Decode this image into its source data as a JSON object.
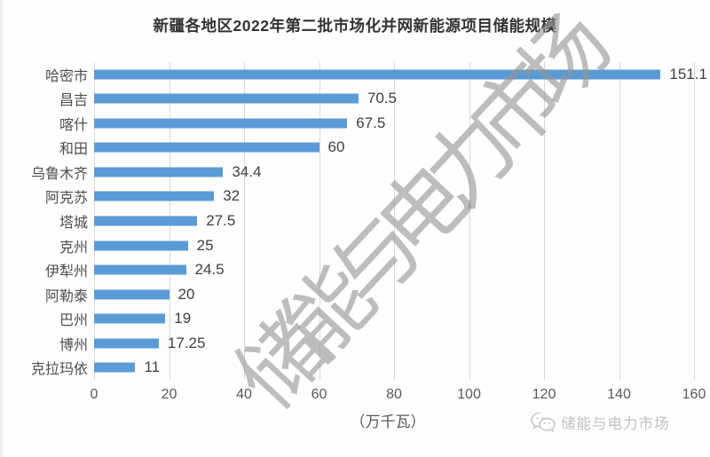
{
  "title": "新疆各地区2022年第二批市场化并网新能源项目储能规模",
  "watermark": "储能与电力市场",
  "footer": {
    "icon": "wechat-icon",
    "brand": "储能与电力市场"
  },
  "axis": {
    "unit_label": "（万千瓦）",
    "ticks": [
      "0",
      "20",
      "40",
      "60",
      "80",
      "100",
      "120",
      "140",
      "160"
    ]
  },
  "colors": {
    "bar": "#5b9bd5",
    "gridline": "#d9d9d9",
    "title_text": "#333333",
    "value_text": "#3f3f3f",
    "category_text": "#4d4d4d",
    "axis_text": "#595959",
    "watermark_text": "#949494",
    "footer_text": "#c3c3c3"
  },
  "chart_data": {
    "type": "bar",
    "orientation": "horizontal",
    "title": "新疆各地区2022年第二批市场化并网新能源项目储能规模",
    "xlabel": "（万千瓦）",
    "ylabel": "",
    "xlim": [
      0,
      160
    ],
    "grid": true,
    "legend": false,
    "categories": [
      "哈密市",
      "昌吉",
      "喀什",
      "和田",
      "乌鲁木齐",
      "阿克苏",
      "塔城",
      "克州",
      "伊犁州",
      "阿勒泰",
      "巴州",
      "博州",
      "克拉玛依"
    ],
    "values": [
      151.1,
      70.5,
      67.5,
      60,
      34.4,
      32,
      27.5,
      25,
      24.5,
      20,
      19,
      17.25,
      11
    ],
    "value_labels": [
      "151.1",
      "70.5",
      "67.5",
      "60",
      "34.4",
      "32",
      "27.5",
      "25",
      "24.5",
      "20",
      "19",
      "17.25",
      "11"
    ]
  }
}
